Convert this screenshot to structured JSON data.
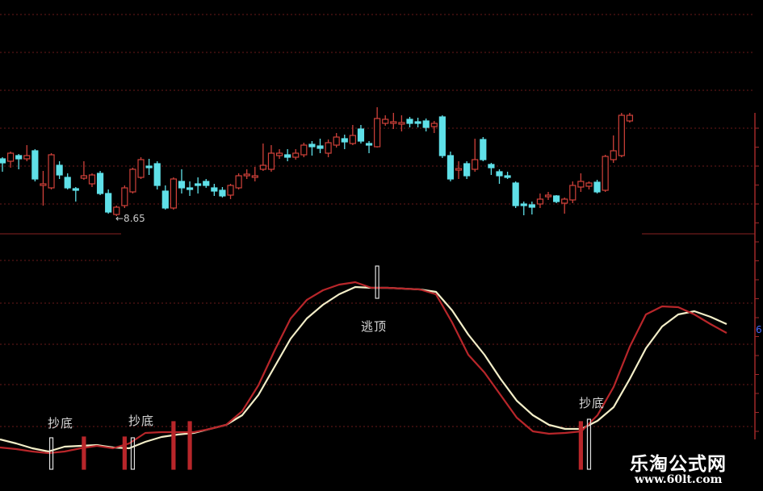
{
  "chart_data": [
    {
      "type": "candlestick",
      "title": "",
      "annotations": [
        {
          "label": "←8.65",
          "bar": 14,
          "value": 8.65
        }
      ],
      "colors": {
        "up": "#d0413a",
        "down": "#5fe0e8",
        "grid": "#6a1a1a"
      },
      "grid": true,
      "ohlc": [
        [
          9.36,
          9.38,
          9.2,
          9.31
        ],
        [
          9.33,
          9.45,
          9.25,
          9.43
        ],
        [
          9.4,
          9.42,
          9.23,
          9.36
        ],
        [
          9.36,
          9.53,
          9.33,
          9.4
        ],
        [
          9.46,
          9.48,
          9.08,
          9.11
        ],
        [
          9.03,
          9.21,
          8.78,
          9.05
        ],
        [
          9.0,
          9.43,
          8.98,
          9.41
        ],
        [
          9.28,
          9.33,
          9.11,
          9.16
        ],
        [
          9.13,
          9.18,
          8.98,
          9.0
        ],
        [
          8.99,
          9.01,
          8.83,
          8.97
        ],
        [
          9.12,
          9.33,
          9.1,
          9.15
        ],
        [
          9.05,
          9.18,
          9.01,
          9.16
        ],
        [
          9.18,
          9.21,
          8.91,
          8.93
        ],
        [
          8.93,
          8.98,
          8.68,
          8.7
        ],
        [
          8.67,
          8.78,
          8.65,
          8.76
        ],
        [
          8.78,
          9.03,
          8.75,
          9.0
        ],
        [
          8.95,
          9.25,
          8.93,
          9.23
        ],
        [
          9.13,
          9.38,
          9.11,
          9.35
        ],
        [
          9.27,
          9.36,
          9.16,
          9.25
        ],
        [
          9.3,
          9.33,
          8.98,
          9.03
        ],
        [
          8.96,
          9.03,
          8.73,
          8.75
        ],
        [
          8.75,
          9.13,
          8.73,
          9.11
        ],
        [
          9.08,
          9.23,
          8.93,
          9.0
        ],
        [
          9.0,
          9.08,
          8.9,
          8.98
        ],
        [
          9.05,
          9.13,
          8.93,
          9.03
        ],
        [
          9.08,
          9.11,
          9.0,
          9.03
        ],
        [
          9.0,
          9.05,
          8.9,
          8.96
        ],
        [
          8.97,
          9.01,
          8.88,
          8.9
        ],
        [
          8.91,
          9.05,
          8.86,
          9.03
        ],
        [
          9.0,
          9.18,
          8.98,
          9.15
        ],
        [
          9.15,
          9.23,
          9.11,
          9.17
        ],
        [
          9.13,
          9.26,
          9.08,
          9.15
        ],
        [
          9.23,
          9.55,
          9.21,
          9.28
        ],
        [
          9.23,
          9.53,
          9.2,
          9.43
        ],
        [
          9.4,
          9.48,
          9.36,
          9.43
        ],
        [
          9.41,
          9.48,
          9.33,
          9.38
        ],
        [
          9.38,
          9.48,
          9.35,
          9.43
        ],
        [
          9.41,
          9.56,
          9.38,
          9.53
        ],
        [
          9.54,
          9.58,
          9.4,
          9.51
        ],
        [
          9.52,
          9.61,
          9.43,
          9.49
        ],
        [
          9.43,
          9.6,
          9.38,
          9.56
        ],
        [
          9.53,
          9.68,
          9.5,
          9.63
        ],
        [
          9.61,
          9.66,
          9.48,
          9.57
        ],
        [
          9.55,
          9.78,
          9.53,
          9.65
        ],
        [
          9.73,
          9.78,
          9.55,
          9.58
        ],
        [
          9.55,
          9.58,
          9.43,
          9.53
        ],
        [
          9.51,
          10.0,
          9.5,
          9.86
        ],
        [
          9.8,
          9.9,
          9.77,
          9.85
        ],
        [
          9.8,
          9.93,
          9.73,
          9.82
        ],
        [
          9.79,
          9.9,
          9.7,
          9.81
        ],
        [
          9.85,
          9.88,
          9.75,
          9.8
        ],
        [
          9.82,
          9.87,
          9.75,
          9.8
        ],
        [
          9.83,
          9.86,
          9.7,
          9.75
        ],
        [
          9.76,
          9.83,
          9.68,
          9.8
        ],
        [
          9.88,
          9.9,
          9.37,
          9.4
        ],
        [
          9.4,
          9.45,
          9.08,
          9.11
        ],
        [
          9.22,
          9.33,
          9.11,
          9.24
        ],
        [
          9.3,
          9.33,
          9.11,
          9.15
        ],
        [
          9.23,
          9.61,
          9.2,
          9.35
        ],
        [
          9.6,
          9.63,
          9.33,
          9.35
        ],
        [
          9.29,
          9.31,
          9.16,
          9.25
        ],
        [
          9.2,
          9.23,
          9.05,
          9.15
        ],
        [
          9.15,
          9.2,
          9.11,
          9.13
        ],
        [
          9.06,
          9.08,
          8.75,
          8.78
        ],
        [
          8.8,
          8.83,
          8.66,
          8.78
        ],
        [
          8.79,
          8.83,
          8.67,
          8.76
        ],
        [
          8.8,
          8.93,
          8.75,
          8.86
        ],
        [
          8.89,
          8.95,
          8.85,
          8.91
        ],
        [
          8.9,
          8.91,
          8.81,
          8.83
        ],
        [
          8.81,
          8.88,
          8.68,
          8.86
        ],
        [
          8.85,
          9.08,
          8.81,
          9.03
        ],
        [
          9.01,
          9.18,
          8.95,
          9.08
        ],
        [
          9.02,
          9.08,
          8.98,
          9.06
        ],
        [
          9.07,
          9.1,
          8.93,
          8.95
        ],
        [
          8.97,
          9.41,
          8.95,
          9.39
        ],
        [
          9.35,
          9.65,
          9.31,
          9.46
        ],
        [
          9.4,
          9.93,
          9.38,
          9.9
        ],
        [
          9.83,
          9.93,
          9.81,
          9.9
        ]
      ]
    },
    {
      "type": "line",
      "title": "",
      "axis_tick_label": "6",
      "series": [
        {
          "color": "#f3eec8",
          "values": [
            7.5,
            5,
            2,
            0,
            3,
            3.5,
            4,
            2.5,
            2,
            6,
            9,
            10.5,
            11.5,
            14,
            16.5,
            22.5,
            35,
            52.5,
            70,
            82.5,
            91,
            97.5,
            102,
            101.5,
            101.5,
            101,
            100.5,
            99,
            87.5,
            72.5,
            60,
            45,
            31.5,
            22.5,
            16.5,
            14,
            14,
            19,
            27.5,
            45,
            64,
            77.5,
            85,
            87,
            83.5,
            79
          ]
        },
        {
          "color": "#b8262a",
          "values": [
            2.5,
            1.5,
            0,
            -1,
            0,
            2,
            3.5,
            2,
            5,
            11.5,
            12,
            12,
            12,
            14,
            16.5,
            25,
            41,
            62.5,
            82.5,
            94,
            100,
            103.5,
            105,
            101.5,
            101.5,
            101,
            100.5,
            97.5,
            80,
            60,
            49,
            35,
            21,
            12.5,
            11,
            11.5,
            12.5,
            22.5,
            40,
            65,
            85,
            90,
            89.5,
            85,
            79,
            73.5
          ]
        }
      ],
      "signals": [
        {
          "bar": 6,
          "kind": "buy",
          "color": "#e0e0e0",
          "label": "抄底"
        },
        {
          "bar": 10,
          "kind": "mark",
          "color": "#b8262a"
        },
        {
          "bar": 15,
          "kind": "mark",
          "color": "#b8262a"
        },
        {
          "bar": 16,
          "kind": "buy",
          "color": "#e0e0e0",
          "label": "抄底"
        },
        {
          "bar": 21,
          "kind": "mark",
          "color": "#b8262a"
        },
        {
          "bar": 23,
          "kind": "mark",
          "color": "#b8262a"
        },
        {
          "bar": 46,
          "kind": "sell",
          "color": "#e0e0e0",
          "label": "逃顶"
        },
        {
          "bar": 71,
          "kind": "mark",
          "color": "#b8262a"
        },
        {
          "bar": 72,
          "kind": "buy",
          "color": "#e0e0e0",
          "label": "抄底"
        }
      ]
    }
  ],
  "watermark": {
    "title": "乐淘公式网",
    "url": "www.60lt.com"
  }
}
